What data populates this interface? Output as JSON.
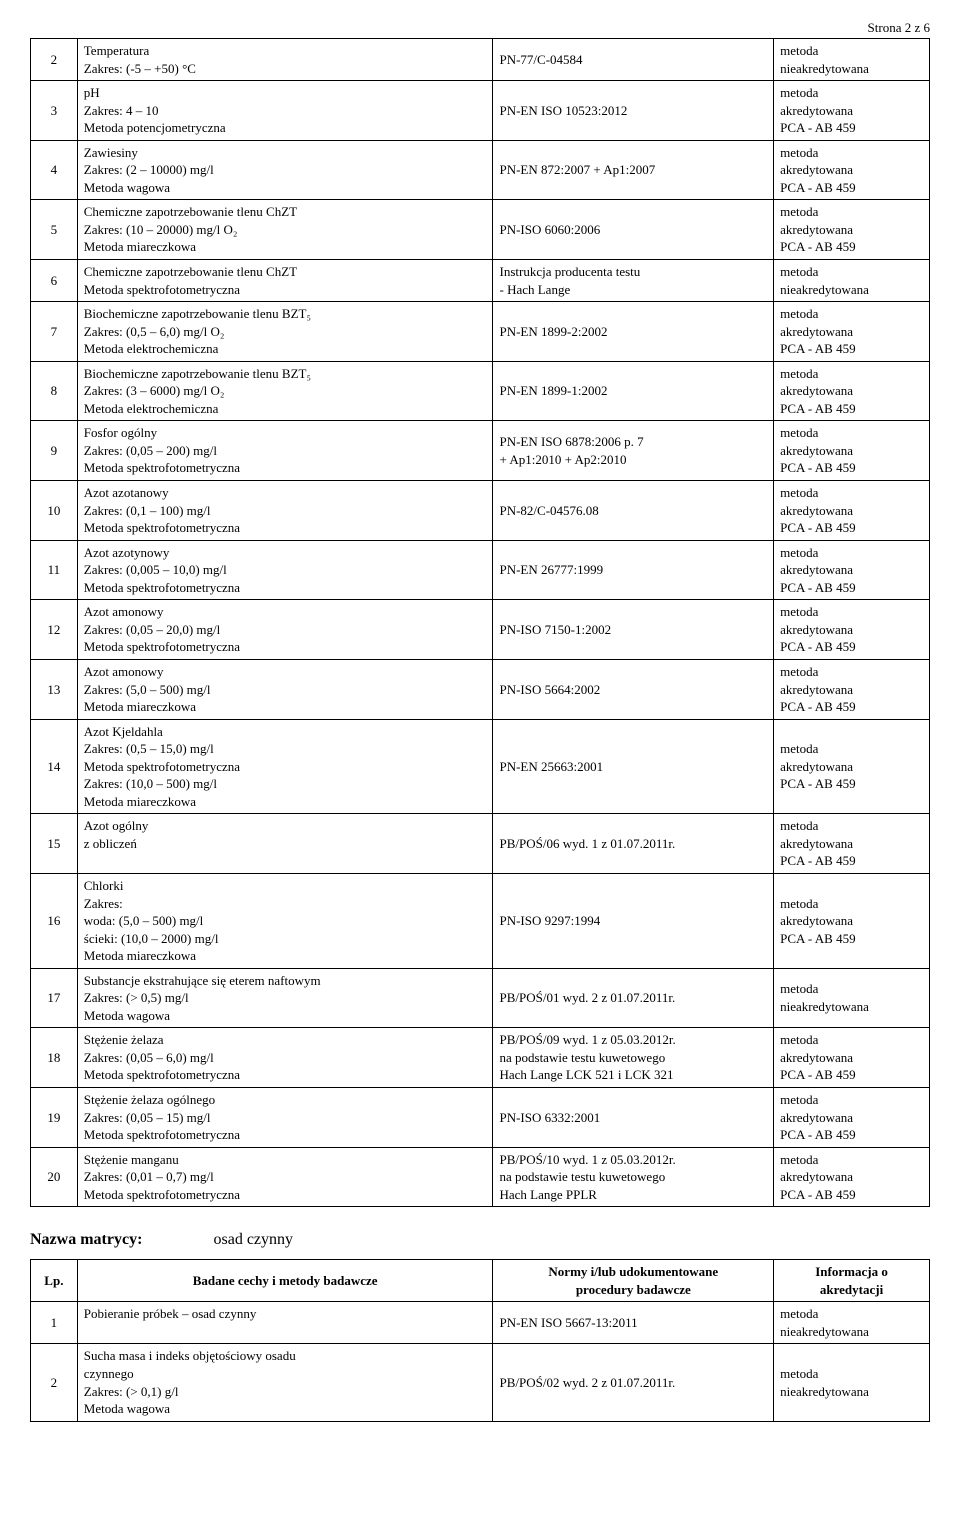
{
  "page_header": "Strona 2 z 6",
  "table1": {
    "columns": {
      "c1_width": 45,
      "c2_width": 400,
      "c3_width": 270,
      "c4_width": 150
    },
    "rows": [
      {
        "n": "2",
        "desc": "Temperatura\nZakres: (-5 – +50) °C",
        "norm": "PN-77/C-04584",
        "info": "metoda\nnieakredytowana"
      },
      {
        "n": "3",
        "desc": "pH\nZakres: 4 – 10\nMetoda potencjometryczna",
        "norm": "PN-EN ISO 10523:2012",
        "info": "metoda\nakredytowana\nPCA - AB 459"
      },
      {
        "n": "4",
        "desc": "Zawiesiny\nZakres: (2 – 10000) mg/l\nMetoda wagowa",
        "norm": "PN-EN 872:2007 + Ap1:2007",
        "info": "metoda\nakredytowana\nPCA - AB 459"
      },
      {
        "n": "5",
        "desc": "Chemiczne zapotrzebowanie tlenu ChZT\nZakres: (10 – 20000) mg/l O₂\nMetoda miareczkowa",
        "norm": "PN-ISO 6060:2006",
        "info": "metoda\nakredytowana\nPCA - AB 459"
      },
      {
        "n": "6",
        "desc": "Chemiczne zapotrzebowanie tlenu ChZT\nMetoda spektrofotometryczna",
        "norm": "Instrukcja producenta testu\n- Hach Lange",
        "info": "metoda\nnieakredytowana"
      },
      {
        "n": "7",
        "desc": "Biochemiczne zapotrzebowanie tlenu BZT₅\nZakres: (0,5 – 6,0) mg/l O₂\nMetoda elektrochemiczna",
        "norm": "PN-EN 1899-2:2002",
        "info": "metoda\nakredytowana\nPCA - AB 459"
      },
      {
        "n": "8",
        "desc": "Biochemiczne zapotrzebowanie tlenu BZT₅\nZakres: (3 – 6000) mg/l O₂\nMetoda elektrochemiczna",
        "norm": "PN-EN 1899-1:2002",
        "info": "metoda\nakredytowana\nPCA - AB 459"
      },
      {
        "n": "9",
        "desc": "Fosfor ogólny\nZakres: (0,05 – 200) mg/l\nMetoda spektrofotometryczna",
        "norm": "PN-EN ISO 6878:2006 p. 7\n+ Ap1:2010 + Ap2:2010",
        "info": "metoda\nakredytowana\nPCA - AB 459"
      },
      {
        "n": "10",
        "desc": "Azot azotanowy\nZakres: (0,1 – 100) mg/l\nMetoda spektrofotometryczna",
        "norm": "PN-82/C-04576.08",
        "info": "metoda\nakredytowana\nPCA - AB 459"
      },
      {
        "n": "11",
        "desc": "Azot azotynowy\nZakres: (0,005 – 10,0) mg/l\nMetoda spektrofotometryczna",
        "norm": "PN-EN 26777:1999",
        "info": "metoda\nakredytowana\nPCA - AB 459"
      },
      {
        "n": "12",
        "desc": "Azot amonowy\nZakres: (0,05 – 20,0) mg/l\nMetoda spektrofotometryczna",
        "norm": "PN-ISO 7150-1:2002",
        "info": "metoda\nakredytowana\nPCA - AB 459"
      },
      {
        "n": "13",
        "desc": "Azot amonowy\nZakres: (5,0 – 500) mg/l\nMetoda miareczkowa",
        "norm": "PN-ISO 5664:2002",
        "info": "metoda\nakredytowana\nPCA - AB 459"
      },
      {
        "n": "14",
        "desc": "Azot Kjeldahla\nZakres: (0,5 – 15,0) mg/l\nMetoda spektrofotometryczna\nZakres: (10,0 – 500) mg/l\nMetoda miareczkowa",
        "norm": "PN-EN 25663:2001",
        "info": "metoda\nakredytowana\nPCA - AB 459"
      },
      {
        "n": "15",
        "desc": "Azot ogólny\nz obliczeń",
        "norm": "PB/POŚ/06 wyd. 1 z 01.07.2011r.",
        "info": "metoda\nakredytowana\nPCA - AB 459"
      },
      {
        "n": "16",
        "desc": "Chlorki\nZakres:\nwoda: (5,0 – 500) mg/l\nścieki: (10,0 – 2000) mg/l\nMetoda miareczkowa",
        "norm": "PN-ISO 9297:1994",
        "info": "metoda\nakredytowana\nPCA - AB 459"
      },
      {
        "n": "17",
        "desc": "Substancje ekstrahujące się eterem naftowym\nZakres: (> 0,5) mg/l\nMetoda wagowa",
        "norm": "PB/POŚ/01 wyd. 2 z 01.07.2011r.",
        "info": "metoda\nnieakredytowana"
      },
      {
        "n": "18",
        "desc": "Stężenie żelaza\nZakres: (0,05 – 6,0) mg/l\nMetoda spektrofotometryczna",
        "norm": "PB/POŚ/09 wyd. 1 z 05.03.2012r.\nna podstawie testu kuwetowego\nHach Lange LCK 521 i LCK 321",
        "info": "metoda\nakredytowana\nPCA - AB 459"
      },
      {
        "n": "19",
        "desc": "Stężenie żelaza ogólnego\nZakres: (0,05 – 15) mg/l\nMetoda spektrofotometryczna",
        "norm": "PN-ISO 6332:2001",
        "info": "metoda\nakredytowana\nPCA - AB 459"
      },
      {
        "n": "20",
        "desc": "Stężenie manganu\nZakres: (0,01 – 0,7) mg/l\nMetoda spektrofotometryczna",
        "norm": "PB/POŚ/10 wyd. 1 z 05.03.2012r.\nna podstawie testu kuwetowego\nHach Lange PPLR",
        "info": "metoda\nakredytowana\nPCA - AB 459"
      }
    ]
  },
  "matrix": {
    "label": "Nazwa matrycy:",
    "name": "osad czynny"
  },
  "table2": {
    "header": {
      "lp": "Lp.",
      "desc": "Badane cechy i metody badawcze",
      "norm": "Normy i/lub udokumentowane\nprocedury badawcze",
      "info": "Informacja o\nakredytacji"
    },
    "rows": [
      {
        "n": "1",
        "desc": "Pobieranie próbek – osad czynny",
        "norm": "PN-EN ISO 5667-13:2011",
        "info": "metoda\nnieakredytowana"
      },
      {
        "n": "2",
        "desc": "Sucha masa i indeks objętościowy osadu\nczynnego\nZakres: (> 0,1) g/l\nMetoda wagowa",
        "norm": "PB/POŚ/02 wyd. 2 z 01.07.2011r.",
        "info": "metoda\nnieakredytowana"
      }
    ]
  }
}
